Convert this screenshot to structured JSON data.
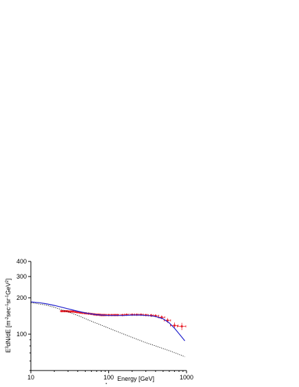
{
  "chart_data": {
    "type": "scatter",
    "title": "",
    "xlabel": "Energy [GeV]",
    "ylabel": "E3dN/dE [m-2sec-1sr-1GeV2]",
    "footnote": "\"",
    "x_scale": "log",
    "y_scale": "log",
    "xlim": [
      10,
      1000
    ],
    "ylim": [
      50,
      400
    ],
    "x_ticks": [
      {
        "value": 10,
        "label": "10"
      },
      {
        "value": 100,
        "label": "100"
      },
      {
        "value": 1000,
        "label": "1000"
      }
    ],
    "y_ticks": [
      {
        "value": 100,
        "label": "100"
      },
      {
        "value": 200,
        "label": "200"
      },
      {
        "value": 300,
        "label": "300"
      },
      {
        "value": 400,
        "label": "400"
      }
    ],
    "grid": false,
    "legend": "none",
    "series": [
      {
        "kind": "points_with_errorbars",
        "color": "#e8202a",
        "x": [
          25,
          27,
          29,
          31,
          33,
          35,
          37.5,
          40,
          43,
          46,
          50,
          55,
          60,
          65,
          70,
          75,
          80,
          85,
          90,
          100,
          110,
          120,
          130,
          150,
          170,
          200,
          230,
          260,
          300,
          350,
          400,
          480,
          570,
          700,
          870
        ],
        "y": [
          155,
          155,
          155,
          154,
          154,
          154,
          153,
          152,
          151,
          150,
          149,
          148,
          147,
          146,
          145,
          145,
          144,
          144,
          144,
          144,
          144,
          144,
          144,
          144,
          145,
          145,
          145,
          145,
          144,
          143,
          142,
          138,
          130,
          118,
          116
        ],
        "x_err": [
          1,
          1,
          1,
          1,
          1,
          1,
          1.5,
          1.5,
          1.5,
          2,
          2,
          2.5,
          2.5,
          2.5,
          3,
          3,
          3,
          3,
          4,
          5,
          5,
          5,
          6,
          8,
          10,
          12,
          14,
          15,
          18,
          25,
          40,
          45,
          55,
          80,
          110
        ],
        "y_err": [
          3,
          3,
          3,
          3,
          3,
          3,
          3,
          3,
          3,
          3,
          3,
          3,
          3,
          3,
          3,
          3,
          3,
          3,
          3,
          3,
          3,
          3,
          3,
          3,
          3,
          3,
          3,
          3,
          3,
          4,
          4,
          5,
          6,
          7,
          8
        ]
      },
      {
        "kind": "line",
        "style": "solid",
        "color": "#1f1fcc",
        "x": [
          10,
          13,
          16,
          20,
          25,
          30,
          40,
          50,
          60,
          70,
          80,
          100,
          130,
          160,
          200,
          250,
          300,
          350,
          400,
          500,
          600,
          700,
          800,
          900,
          950
        ],
        "y": [
          185,
          182,
          178,
          173,
          167,
          162,
          155,
          150,
          147,
          145,
          144,
          143,
          143,
          143,
          144,
          144,
          143,
          142,
          140,
          134,
          124,
          112,
          101,
          92,
          88
        ]
      },
      {
        "kind": "line",
        "style": "dotted",
        "color": "#000000",
        "x": [
          10,
          15,
          20,
          30,
          40,
          60,
          80,
          100,
          150,
          200,
          300,
          400,
          600,
          800,
          950
        ],
        "y": [
          182,
          175,
          167,
          153,
          143,
          128,
          119,
          112,
          101,
          94,
          85,
          80,
          73,
          68,
          65
        ]
      }
    ]
  }
}
